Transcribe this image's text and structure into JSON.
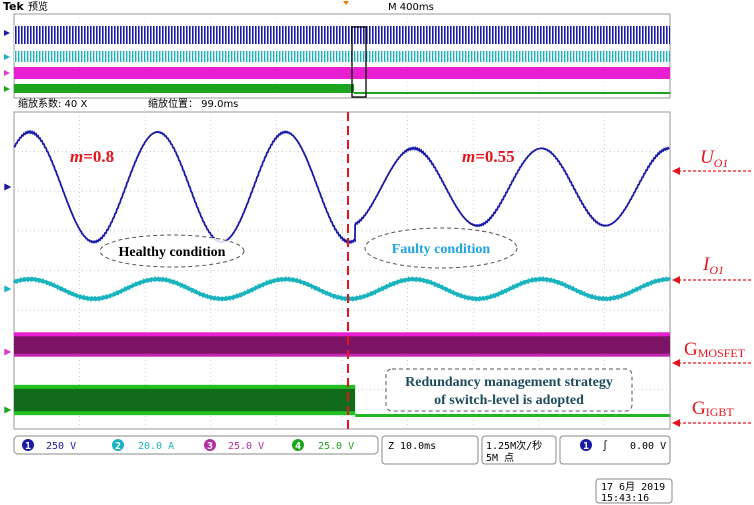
{
  "header": {
    "brand": "Tek",
    "mode": "预览",
    "timebase": "M 400ms"
  },
  "zoom": {
    "factor_label": "缩放系数: 40 X",
    "position_label": "缩放位置： 99.0ms"
  },
  "annotations": {
    "m_healthy_sym": "m",
    "m_healthy_val": "=0.8",
    "m_faulty_sym": "m",
    "m_faulty_val": "=0.55",
    "healthy": "Healthy condition",
    "faulty": "Faulty condition",
    "redundancy_line1": "Redundancy management strategy",
    "redundancy_line2": "of switch-level is adopted"
  },
  "signal_labels": {
    "u_main": "U",
    "u_sub": "O1",
    "i_main": "I",
    "i_sub": "O1",
    "gm_main": "G",
    "gm_sub": "MOSFET",
    "gi_main": "G",
    "gi_sub": "IGBT"
  },
  "channels": [
    {
      "num": "1",
      "scale": "250 V",
      "color": "#1a1aa8"
    },
    {
      "num": "2",
      "scale": "20.0 A",
      "color": "#19b3bf"
    },
    {
      "num": "3",
      "scale": "25.0 V",
      "color": "#e03acb"
    },
    {
      "num": "4",
      "scale": "25.0 V",
      "color": "#1ea51e"
    }
  ],
  "acquisition": {
    "time_div": "Z 10.0ms",
    "sample_rate": "1.25M次/秒",
    "record_length": "5M 点",
    "trigger_channel": "1",
    "trigger_slope": "∫",
    "trigger_level": "0.00 V"
  },
  "datetime": {
    "date": "17 6月  2019",
    "time": "15:43:16"
  },
  "chart_data": {
    "type": "line",
    "x_unit_per_div": "10.0ms",
    "x_divisions": 10,
    "fault_time_div": 5.2,
    "series": [
      {
        "channel": 1,
        "color": "#1a1aa8",
        "segments": [
          {
            "x_from_div": 0,
            "x_to_div": 5.2,
            "amplitude_div": 1.85,
            "period_div": 1.95,
            "phase_div": 0.24
          },
          {
            "x_from_div": 5.2,
            "x_to_div": 10,
            "amplitude_div": 1.3,
            "period_div": 1.95,
            "phase_div": 0.24
          }
        ]
      },
      {
        "channel": 2,
        "color": "#19b3bf",
        "amplitude_div": 0.45,
        "period_div": 1.95,
        "phase_div": 0.24
      },
      {
        "channel": 3,
        "color": "#e03acb",
        "type": "pwm_band",
        "height_div": 0.6
      },
      {
        "channel": 4,
        "color": "#1ea51e",
        "type": "pwm_band",
        "height_div": 0.55,
        "stops_at_div": 5.2
      }
    ]
  }
}
